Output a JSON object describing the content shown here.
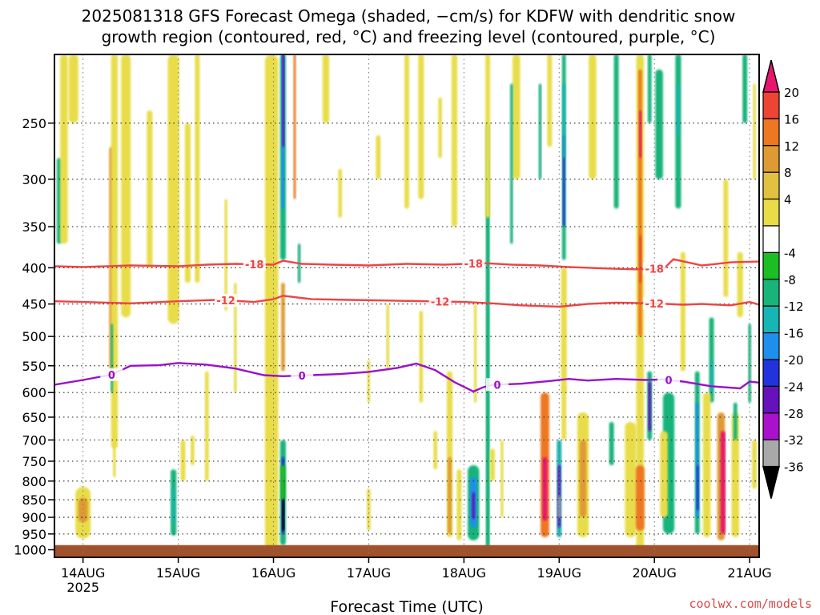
{
  "chart_data": {
    "type": "heatmap",
    "title_lines": [
      "2025081318 GFS Forecast Omega (shaded, −cm/s) for KDFW with dendritic snow",
      "growth region (contoured, red, °C) and freezing level (contoured, purple, °C)"
    ],
    "xlabel": "Forecast Time (UTC)",
    "ylabel": "",
    "credit": "coolwx.com/models",
    "x_ticks": [
      "14AUG",
      "15AUG",
      "16AUG",
      "17AUG",
      "18AUG",
      "19AUG",
      "20AUG",
      "21AUG"
    ],
    "x_year_label": "2025",
    "x_range_days": [
      -0.3,
      7.1
    ],
    "y_ticks": [
      250,
      300,
      350,
      400,
      450,
      500,
      550,
      600,
      650,
      700,
      750,
      800,
      850,
      900,
      950,
      1000
    ],
    "y_range": [
      200,
      1025
    ],
    "y_scale": "log",
    "grid": true,
    "colorbar": {
      "labels": [
        "20",
        "16",
        "12",
        "8",
        "4",
        "-4",
        "-8",
        "-12",
        "-16",
        "-20",
        "-24",
        "-28",
        "-32",
        "-36"
      ],
      "colors": [
        "#e8166e",
        "#ee4433",
        "#ee7722",
        "#e09a33",
        "#e3c140",
        "#e8dd48",
        "#ffffff",
        "#1bbf24",
        "#19b47a",
        "#17b5b3",
        "#1f8fee",
        "#2233dd",
        "#6611bb",
        "#aa11cc",
        "#a9a9a9",
        "#000000"
      ]
    },
    "legend_colors": {
      "dgz": "#ee4444",
      "freezing": "#9911cc",
      "ground": "#a0522d"
    },
    "contours": [
      {
        "name": "-18",
        "color": "#ee4444",
        "points": [
          [
            -0.3,
            398
          ],
          [
            0,
            399
          ],
          [
            0.5,
            397
          ],
          [
            1,
            398
          ],
          [
            1.3,
            396
          ],
          [
            1.6,
            395
          ],
          [
            2,
            396
          ],
          [
            2.1,
            391
          ],
          [
            2.3,
            395
          ],
          [
            2.6,
            396
          ],
          [
            3,
            397
          ],
          [
            3.4,
            395
          ],
          [
            3.8,
            396
          ],
          [
            4.2,
            394
          ],
          [
            4.5,
            396
          ],
          [
            4.8,
            397
          ],
          [
            5.1,
            399
          ],
          [
            5.5,
            401
          ],
          [
            5.8,
            402
          ],
          [
            6.1,
            401
          ],
          [
            6.2,
            389
          ],
          [
            6.5,
            397
          ],
          [
            6.8,
            393
          ],
          [
            7.1,
            392
          ]
        ],
        "labels_at": [
          1.8,
          4.1,
          6.0
        ]
      },
      {
        "name": "-12",
        "color": "#ee4444",
        "points": [
          [
            -0.3,
            446
          ],
          [
            0,
            447
          ],
          [
            0.5,
            449
          ],
          [
            1,
            446
          ],
          [
            1.4,
            444
          ],
          [
            1.8,
            447
          ],
          [
            2,
            443
          ],
          [
            2.1,
            438
          ],
          [
            2.4,
            443
          ],
          [
            2.8,
            444
          ],
          [
            3.2,
            445
          ],
          [
            3.6,
            446
          ],
          [
            4,
            447
          ],
          [
            4.3,
            449
          ],
          [
            4.6,
            452
          ],
          [
            5,
            454
          ],
          [
            5.3,
            450
          ],
          [
            5.6,
            448
          ],
          [
            6,
            449
          ],
          [
            6.3,
            451
          ],
          [
            6.5,
            450
          ],
          [
            6.8,
            452
          ],
          [
            7,
            447
          ],
          [
            7.1,
            451
          ]
        ],
        "labels_at": [
          1.5,
          3.75,
          6.0
        ]
      },
      {
        "name": "0",
        "color": "#9911cc",
        "points": [
          [
            -0.3,
            585
          ],
          [
            0,
            576
          ],
          [
            0.3,
            566
          ],
          [
            0.5,
            550
          ],
          [
            0.8,
            549
          ],
          [
            1,
            545
          ],
          [
            1.3,
            548
          ],
          [
            1.6,
            555
          ],
          [
            1.9,
            567
          ],
          [
            2.1,
            569
          ],
          [
            2.4,
            567
          ],
          [
            2.7,
            565
          ],
          [
            3,
            561
          ],
          [
            3.3,
            554
          ],
          [
            3.5,
            546
          ],
          [
            3.7,
            558
          ],
          [
            3.9,
            580
          ],
          [
            4.1,
            598
          ],
          [
            4.2,
            590
          ],
          [
            4.3,
            585
          ],
          [
            4.6,
            583
          ],
          [
            4.9,
            578
          ],
          [
            5.1,
            574
          ],
          [
            5.3,
            577
          ],
          [
            5.6,
            574
          ],
          [
            5.9,
            576
          ],
          [
            6.1,
            575
          ],
          [
            6.3,
            579
          ],
          [
            6.6,
            588
          ],
          [
            6.9,
            592
          ],
          [
            7,
            579
          ],
          [
            7.1,
            581
          ]
        ],
        "labels_at": [
          0.3,
          2.3,
          4.35,
          6.15
        ]
      }
    ],
    "blobs": [
      {
        "x": 0.0,
        "p0": 815,
        "p1": 965,
        "w": 0.16,
        "v": 6
      },
      {
        "x": 0.0,
        "p0": 845,
        "p1": 915,
        "w": 0.1,
        "v": 10
      },
      {
        "x": 0.3,
        "p0": 270,
        "p1": 560,
        "w": 0.05,
        "v": 8
      },
      {
        "x": 0.33,
        "p0": 200,
        "p1": 720,
        "w": 0.07,
        "v": 4
      },
      {
        "x": 0.33,
        "p0": 700,
        "p1": 790,
        "w": 0.03,
        "v": 6
      },
      {
        "x": 0.45,
        "p0": 200,
        "p1": 470,
        "w": 0.1,
        "v": 5
      },
      {
        "x": 0.7,
        "p0": 240,
        "p1": 400,
        "w": 0.06,
        "v": 4
      },
      {
        "x": -0.25,
        "p0": 280,
        "p1": 370,
        "w": 0.05,
        "v": -9
      },
      {
        "x": -0.2,
        "p0": 200,
        "p1": 370,
        "w": 0.08,
        "v": 5
      },
      {
        "x": 0.3,
        "p0": 480,
        "p1": 600,
        "w": 0.02,
        "v": -9
      },
      {
        "x": -0.1,
        "p0": 200,
        "p1": 250,
        "w": 0.1,
        "v": 5
      },
      {
        "x": 0.95,
        "p0": 200,
        "p1": 480,
        "w": 0.12,
        "v": 4
      },
      {
        "x": 1.1,
        "p0": 250,
        "p1": 420,
        "w": 0.06,
        "v": 5
      },
      {
        "x": 0.95,
        "p0": 770,
        "p1": 955,
        "w": 0.06,
        "v": -10
      },
      {
        "x": 0.95,
        "p0": 820,
        "p1": 920,
        "w": 0.03,
        "v": -14
      },
      {
        "x": 1.05,
        "p0": 700,
        "p1": 800,
        "w": 0.05,
        "v": 6
      },
      {
        "x": 1.15,
        "p0": 690,
        "p1": 760,
        "w": 0.04,
        "v": 5
      },
      {
        "x": 1.3,
        "p0": 560,
        "p1": 800,
        "w": 0.04,
        "v": 4
      },
      {
        "x": 1.2,
        "p0": 200,
        "p1": 420,
        "w": 0.05,
        "v": 5
      },
      {
        "x": 1.5,
        "p0": 320,
        "p1": 460,
        "w": 0.03,
        "v": 4
      },
      {
        "x": 1.6,
        "p0": 420,
        "p1": 600,
        "w": 0.03,
        "v": 4
      },
      {
        "x": 1.98,
        "p0": 200,
        "p1": 1000,
        "w": 0.14,
        "v": 4
      },
      {
        "x": 2.1,
        "p0": 200,
        "p1": 390,
        "w": 0.06,
        "v": -9
      },
      {
        "x": 2.1,
        "p0": 200,
        "p1": 330,
        "w": 0.03,
        "v": -16
      },
      {
        "x": 2.1,
        "p0": 200,
        "p1": 270,
        "w": 0.02,
        "v": -26
      },
      {
        "x": 2.22,
        "p0": 200,
        "p1": 320,
        "w": 0.02,
        "v": 14
      },
      {
        "x": 2.1,
        "p0": 700,
        "p1": 985,
        "w": 0.06,
        "v": -9
      },
      {
        "x": 2.1,
        "p0": 740,
        "p1": 950,
        "w": 0.03,
        "v": -20
      },
      {
        "x": 2.1,
        "p0": 790,
        "p1": 940,
        "w": 0.02,
        "v": -36
      },
      {
        "x": 2.1,
        "p0": 420,
        "p1": 560,
        "w": 0.04,
        "v": 10
      },
      {
        "x": 2.1,
        "p0": 760,
        "p1": 850,
        "w": 0.05,
        "v": -6
      },
      {
        "x": 2.27,
        "p0": 370,
        "p1": 420,
        "w": 0.03,
        "v": -9
      },
      {
        "x": 2.55,
        "p0": 200,
        "p1": 250,
        "w": 0.07,
        "v": 5
      },
      {
        "x": 2.7,
        "p0": 290,
        "p1": 340,
        "w": 0.04,
        "v": 4
      },
      {
        "x": 3.0,
        "p0": 540,
        "p1": 620,
        "w": 0.03,
        "v": 4
      },
      {
        "x": 3.0,
        "p0": 820,
        "p1": 940,
        "w": 0.04,
        "v": 7
      },
      {
        "x": 3.1,
        "p0": 260,
        "p1": 300,
        "w": 0.05,
        "v": 5
      },
      {
        "x": 3.2,
        "p0": 450,
        "p1": 560,
        "w": 0.03,
        "v": 4
      },
      {
        "x": 3.4,
        "p0": 200,
        "p1": 330,
        "w": 0.05,
        "v": 5
      },
      {
        "x": 3.55,
        "p0": 200,
        "p1": 320,
        "w": 0.06,
        "v": 6
      },
      {
        "x": 3.75,
        "p0": 230,
        "p1": 280,
        "w": 0.04,
        "v": 5
      },
      {
        "x": 3.9,
        "p0": 200,
        "p1": 350,
        "w": 0.06,
        "v": 4
      },
      {
        "x": 3.55,
        "p0": 460,
        "p1": 620,
        "w": 0.04,
        "v": 4
      },
      {
        "x": 3.7,
        "p0": 680,
        "p1": 770,
        "w": 0.04,
        "v": 5
      },
      {
        "x": 3.85,
        "p0": 560,
        "p1": 960,
        "w": 0.06,
        "v": 4
      },
      {
        "x": 3.85,
        "p0": 740,
        "p1": 950,
        "w": 0.04,
        "v": 10
      },
      {
        "x": 3.95,
        "p0": 770,
        "p1": 970,
        "w": 0.05,
        "v": 6
      },
      {
        "x": 4.1,
        "p0": 760,
        "p1": 970,
        "w": 0.12,
        "v": -11
      },
      {
        "x": 4.1,
        "p0": 790,
        "p1": 930,
        "w": 0.07,
        "v": -17
      },
      {
        "x": 4.1,
        "p0": 830,
        "p1": 905,
        "w": 0.03,
        "v": -25
      },
      {
        "x": 4.12,
        "p0": 450,
        "p1": 620,
        "w": 0.03,
        "v": 4
      },
      {
        "x": 4.25,
        "p0": 250,
        "p1": 1000,
        "w": 0.04,
        "v": -8
      },
      {
        "x": 4.25,
        "p0": 280,
        "p1": 980,
        "w": 0.02,
        "v": -10
      },
      {
        "x": 4.3,
        "p0": 720,
        "p1": 800,
        "w": 0.05,
        "v": 6
      },
      {
        "x": 4.4,
        "p0": 700,
        "p1": 900,
        "w": 0.03,
        "v": 4
      },
      {
        "x": 4.55,
        "p0": 200,
        "p1": 300,
        "w": 0.08,
        "v": 4
      },
      {
        "x": 4.25,
        "p0": 200,
        "p1": 340,
        "w": 0.05,
        "v": 5
      },
      {
        "x": 4.9,
        "p0": 200,
        "p1": 270,
        "w": 0.05,
        "v": 5
      },
      {
        "x": 4.5,
        "p0": 220,
        "p1": 370,
        "w": 0.03,
        "v": -9
      },
      {
        "x": 4.8,
        "p0": 220,
        "p1": 300,
        "w": 0.03,
        "v": -9
      },
      {
        "x": 4.85,
        "p0": 600,
        "p1": 960,
        "w": 0.09,
        "v": 12
      },
      {
        "x": 4.85,
        "p0": 740,
        "p1": 910,
        "w": 0.05,
        "v": 20
      },
      {
        "x": 5.0,
        "p0": 700,
        "p1": 960,
        "w": 0.05,
        "v": -12
      },
      {
        "x": 5.0,
        "p0": 760,
        "p1": 930,
        "w": 0.03,
        "v": -26
      },
      {
        "x": 5.0,
        "p0": 840,
        "p1": 900,
        "w": 0.02,
        "v": -32
      },
      {
        "x": 5.05,
        "p0": 200,
        "p1": 390,
        "w": 0.04,
        "v": -9
      },
      {
        "x": 5.05,
        "p0": 260,
        "p1": 350,
        "w": 0.025,
        "v": -20
      },
      {
        "x": 5.05,
        "p0": 220,
        "p1": 280,
        "w": 0.03,
        "v": -14
      },
      {
        "x": 5.05,
        "p0": 400,
        "p1": 600,
        "w": 0.06,
        "v": 5
      },
      {
        "x": 5.05,
        "p0": 590,
        "p1": 700,
        "w": 0.05,
        "v": 4
      },
      {
        "x": 5.25,
        "p0": 640,
        "p1": 960,
        "w": 0.12,
        "v": 6
      },
      {
        "x": 5.25,
        "p0": 700,
        "p1": 900,
        "w": 0.07,
        "v": 11
      },
      {
        "x": 5.35,
        "p0": 200,
        "p1": 300,
        "w": 0.08,
        "v": 4
      },
      {
        "x": 5.55,
        "p0": 660,
        "p1": 760,
        "w": 0.05,
        "v": -9
      },
      {
        "x": 5.6,
        "p0": 200,
        "p1": 330,
        "w": 0.05,
        "v": -9
      },
      {
        "x": 5.75,
        "p0": 660,
        "p1": 960,
        "w": 0.12,
        "v": 5
      },
      {
        "x": 5.85,
        "p0": 200,
        "p1": 1000,
        "w": 0.08,
        "v": 5
      },
      {
        "x": 5.85,
        "p0": 210,
        "p1": 500,
        "w": 0.04,
        "v": 12
      },
      {
        "x": 5.85,
        "p0": 240,
        "p1": 280,
        "w": 0.02,
        "v": 20
      },
      {
        "x": 5.85,
        "p0": 360,
        "p1": 420,
        "w": 0.02,
        "v": 16
      },
      {
        "x": 5.85,
        "p0": 760,
        "p1": 940,
        "w": 0.09,
        "v": 14
      },
      {
        "x": 5.95,
        "p0": 560,
        "p1": 700,
        "w": 0.05,
        "v": -10
      },
      {
        "x": 5.95,
        "p0": 580,
        "p1": 680,
        "w": 0.03,
        "v": -24
      },
      {
        "x": 6.05,
        "p0": 210,
        "p1": 300,
        "w": 0.08,
        "v": -9
      },
      {
        "x": 6.25,
        "p0": 200,
        "p1": 330,
        "w": 0.06,
        "v": -9
      },
      {
        "x": 6.25,
        "p0": 220,
        "p1": 260,
        "w": 0.03,
        "v": -14
      },
      {
        "x": 6.15,
        "p0": 600,
        "p1": 950,
        "w": 0.12,
        "v": -9
      },
      {
        "x": 6.1,
        "p0": 680,
        "p1": 900,
        "w": 0.08,
        "v": 5
      },
      {
        "x": 6.45,
        "p0": 560,
        "p1": 950,
        "w": 0.05,
        "v": -9
      },
      {
        "x": 6.45,
        "p0": 620,
        "p1": 900,
        "w": 0.03,
        "v": -18
      },
      {
        "x": 6.45,
        "p0": 760,
        "p1": 880,
        "w": 0.015,
        "v": -22
      },
      {
        "x": 6.6,
        "p0": 470,
        "p1": 620,
        "w": 0.05,
        "v": -9
      },
      {
        "x": 6.6,
        "p0": 540,
        "p1": 600,
        "w": 0.03,
        "v": -14
      },
      {
        "x": 6.55,
        "p0": 600,
        "p1": 960,
        "w": 0.08,
        "v": 5
      },
      {
        "x": 6.7,
        "p0": 640,
        "p1": 970,
        "w": 0.08,
        "v": 8
      },
      {
        "x": 6.72,
        "p0": 680,
        "p1": 950,
        "w": 0.05,
        "v": 20
      },
      {
        "x": 6.85,
        "p0": 640,
        "p1": 960,
        "w": 0.08,
        "v": 5
      },
      {
        "x": 6.9,
        "p0": 380,
        "p1": 470,
        "w": 0.06,
        "v": 6
      },
      {
        "x": 7.0,
        "p0": 480,
        "p1": 620,
        "w": 0.03,
        "v": -9
      },
      {
        "x": 7.05,
        "p0": 700,
        "p1": 820,
        "w": 0.05,
        "v": 5
      },
      {
        "x": 6.95,
        "p0": 200,
        "p1": 250,
        "w": 0.05,
        "v": -9
      },
      {
        "x": 6.75,
        "p0": 300,
        "p1": 440,
        "w": 0.05,
        "v": 4
      },
      {
        "x": 7.05,
        "p0": 220,
        "p1": 300,
        "w": 0.03,
        "v": 4
      },
      {
        "x": 5.95,
        "p0": 200,
        "p1": 250,
        "w": 0.04,
        "v": -9
      },
      {
        "x": 6.3,
        "p0": 380,
        "p1": 560,
        "w": 0.05,
        "v": 4
      },
      {
        "x": 6.85,
        "p0": 620,
        "p1": 700,
        "w": 0.04,
        "v": -9
      }
    ]
  }
}
